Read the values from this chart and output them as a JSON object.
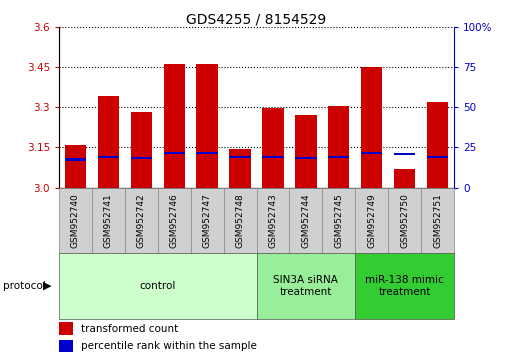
{
  "title": "GDS4255 / 8154529",
  "samples": [
    "GSM952740",
    "GSM952741",
    "GSM952742",
    "GSM952746",
    "GSM952747",
    "GSM952748",
    "GSM952743",
    "GSM952744",
    "GSM952745",
    "GSM952749",
    "GSM952750",
    "GSM952751"
  ],
  "red_values": [
    3.16,
    3.34,
    3.28,
    3.46,
    3.46,
    3.145,
    3.295,
    3.27,
    3.305,
    3.45,
    3.07,
    3.32
  ],
  "blue_values": [
    3.105,
    3.115,
    3.11,
    3.13,
    3.13,
    3.115,
    3.115,
    3.11,
    3.115,
    3.13,
    3.125,
    3.115
  ],
  "ymin": 3.0,
  "ymax": 3.6,
  "yticks_left": [
    3.0,
    3.15,
    3.3,
    3.45,
    3.6
  ],
  "yticks_right_vals": [
    0,
    25,
    50,
    75,
    100
  ],
  "red_color": "#cc0000",
  "blue_color": "#0000cc",
  "bar_width": 0.65,
  "groups": [
    {
      "label": "control",
      "start": 0,
      "end": 6,
      "color": "#ccffcc"
    },
    {
      "label": "SIN3A siRNA\ntreatment",
      "start": 6,
      "end": 9,
      "color": "#99ee99"
    },
    {
      "label": "miR-138 mimic\ntreatment",
      "start": 9,
      "end": 12,
      "color": "#33cc33"
    }
  ],
  "tick_label_color": "#cc0000",
  "right_tick_color": "#0000cc",
  "legend_items": [
    {
      "label": "transformed count",
      "color": "#cc0000"
    },
    {
      "label": "percentile rank within the sample",
      "color": "#0000cc"
    }
  ],
  "protocol_label": "protocol",
  "title_fontsize": 10,
  "tick_fontsize": 7.5,
  "group_label_fontsize": 7.5,
  "sample_fontsize": 6.5
}
